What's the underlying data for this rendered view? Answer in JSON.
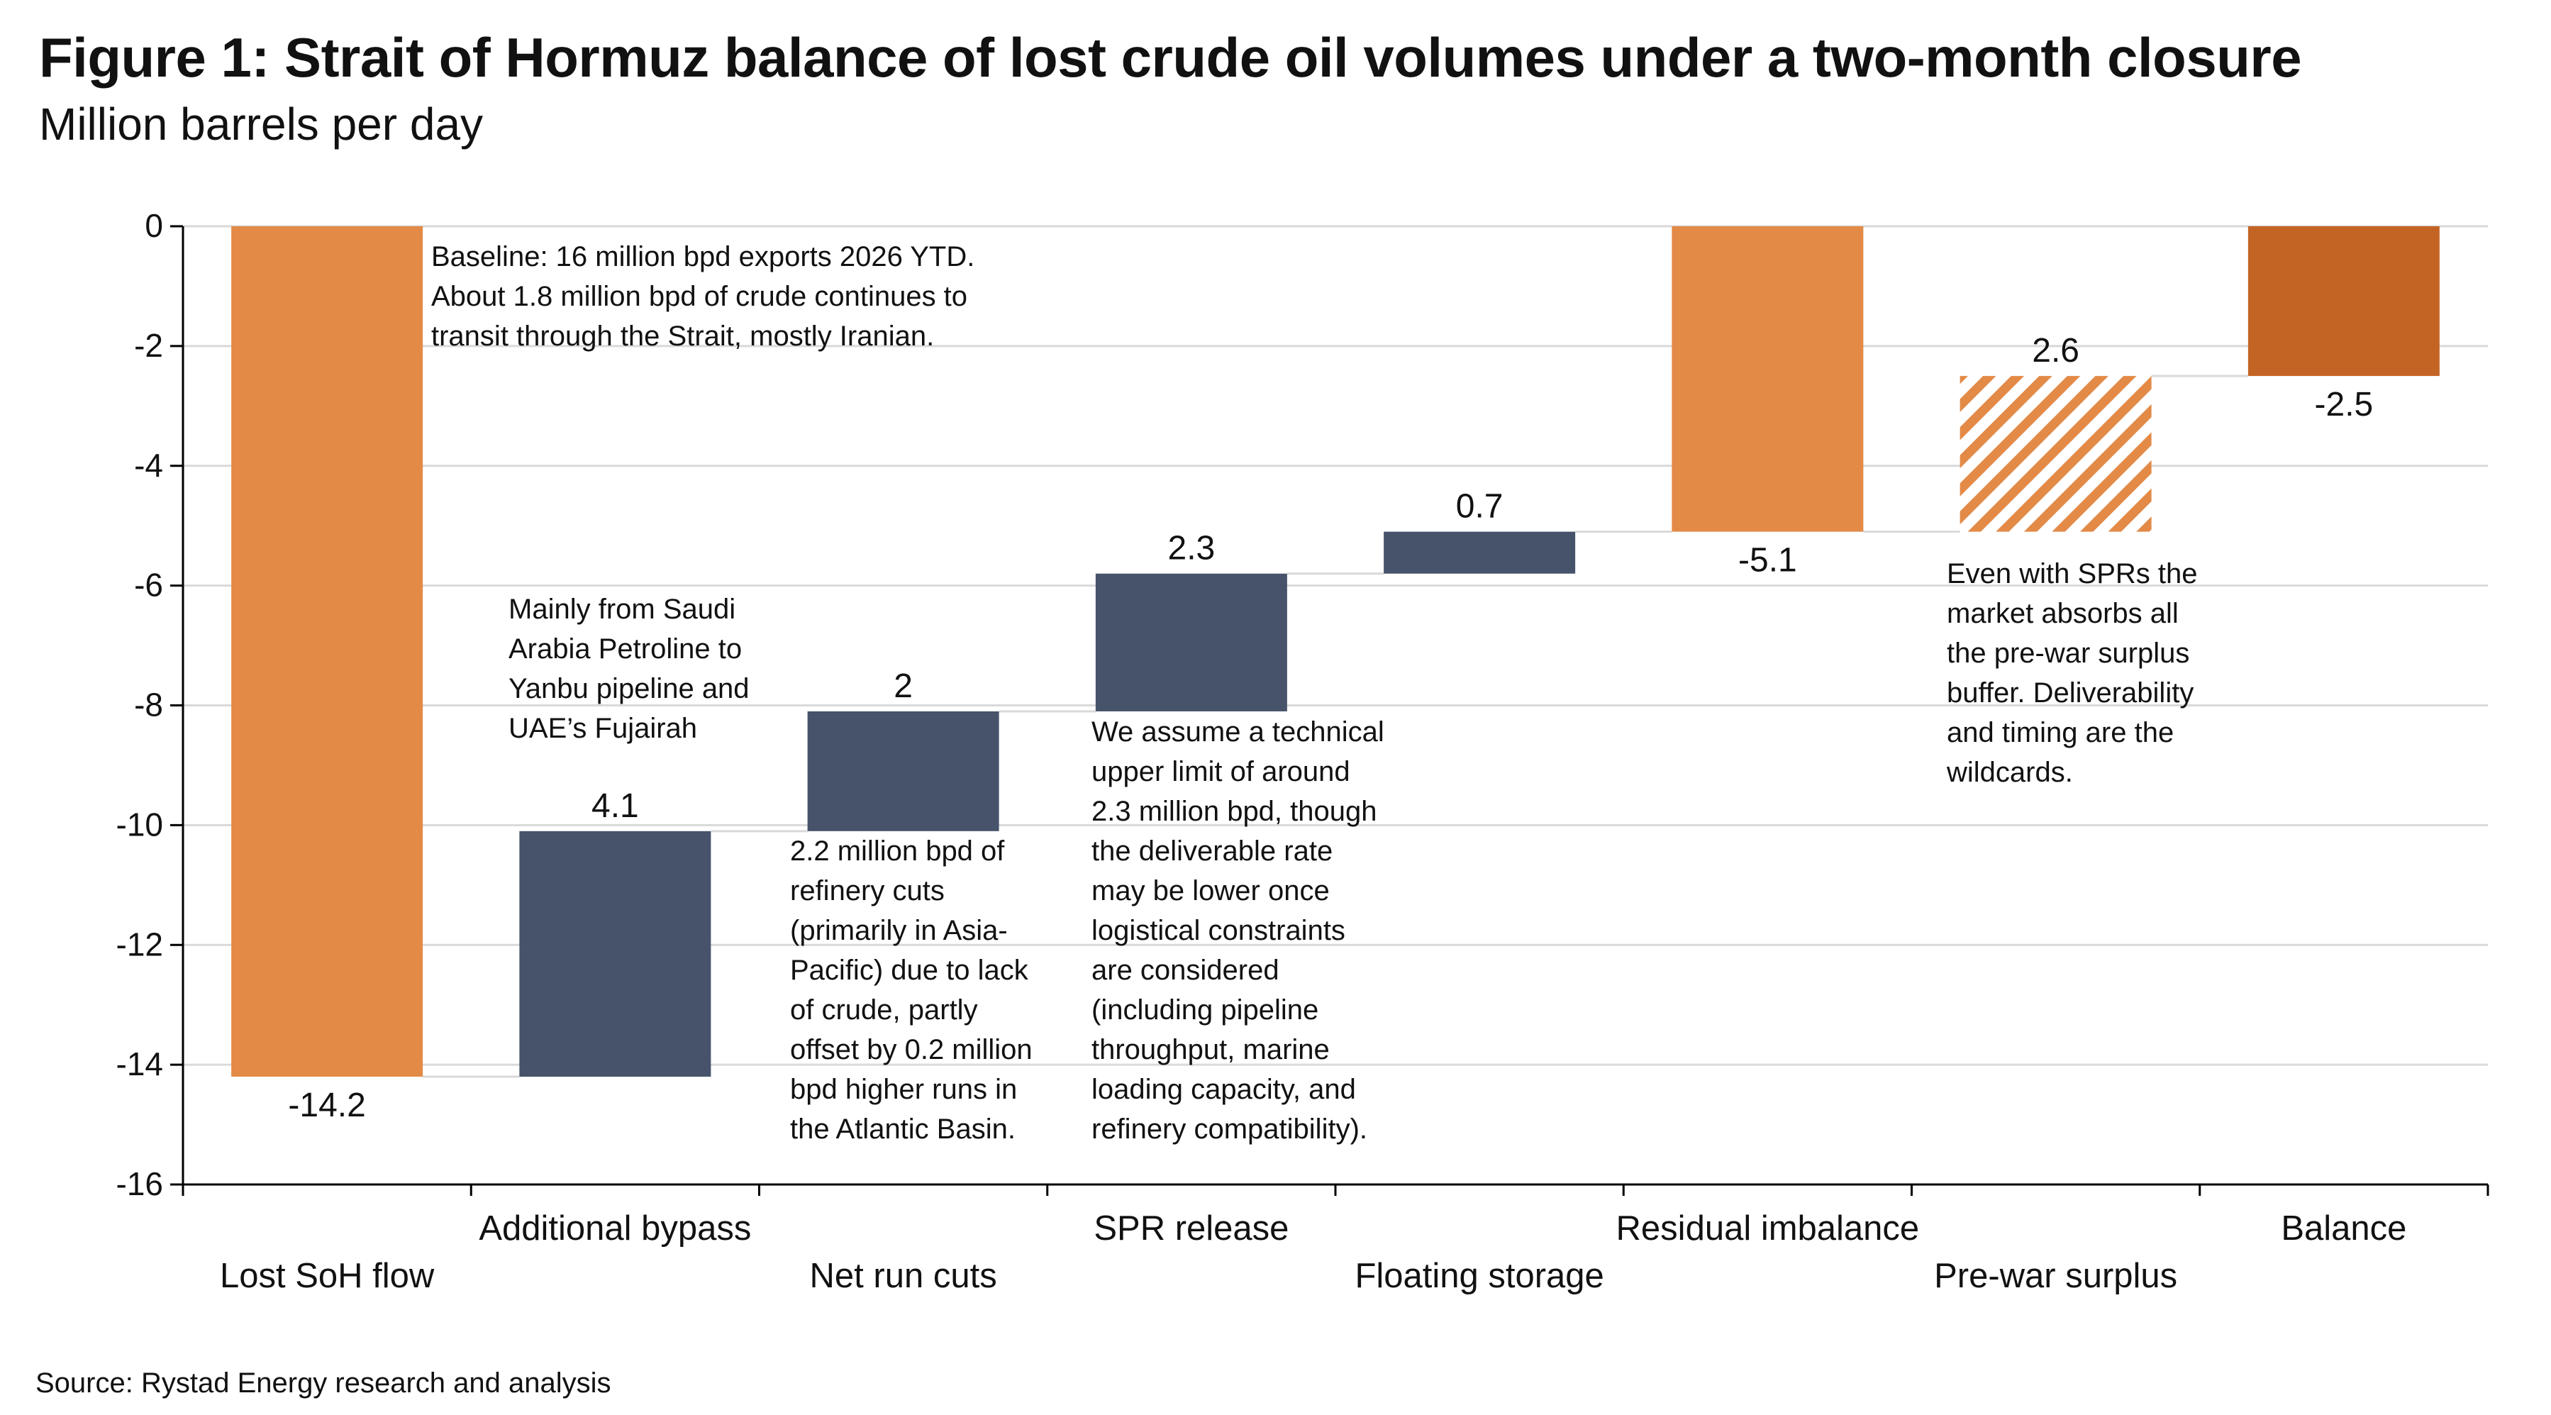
{
  "header": {
    "title": "Figure 1: Strait of Hormuz balance of lost crude oil volumes under a two-month closure",
    "subtitle": "Million barrels per day"
  },
  "footer": {
    "source": "Source: Rystad Energy research and analysis"
  },
  "colors": {
    "loss": "#E38A47",
    "offset": "#46536A",
    "balance": "#C46424",
    "hatch": "#E38A47",
    "grid": "#D9D9D9",
    "axis": "#000000"
  },
  "notes": {
    "baseline": [
      "Baseline: 16 million bpd exports 2026 YTD.",
      "About 1.8 million bpd of crude continues to",
      "transit through the Strait, mostly Iranian."
    ],
    "bypass": [
      "Mainly from Saudi",
      "Arabia Petroline to",
      "Yanbu pipeline and",
      "UAE’s Fujairah"
    ],
    "run_cuts": [
      "2.2 million bpd of",
      "refinery cuts",
      "(primarily in Asia-",
      "Pacific) due to lack",
      "of crude, partly",
      "offset by 0.2 million",
      "bpd higher runs in",
      "the Atlantic Basin."
    ],
    "spr": [
      "We assume a technical",
      "upper limit of around",
      "2.3 million bpd, though",
      "the deliverable rate",
      "may be lower once",
      "logistical constraints",
      "are considered",
      "(including pipeline",
      "throughput, marine",
      "loading capacity, and",
      "refinery compatibility)."
    ],
    "surplus": [
      "Even with SPRs the",
      "market absorbs all",
      "the pre-war surplus",
      "buffer. Deliverability",
      "and timing are the",
      "wildcards."
    ]
  },
  "chart_data": {
    "type": "waterfall",
    "title": "Figure 1: Strait of Hormuz balance of lost crude oil volumes under a two-month closure",
    "ylabel": "Million barrels per day",
    "ylim": [
      -16,
      0
    ],
    "yticks": [
      0,
      -2,
      -4,
      -6,
      -8,
      -10,
      -12,
      -14,
      -16
    ],
    "grid": true,
    "categories": [
      "Lost SoH flow",
      "Additional bypass",
      "Net run cuts",
      "SPR release",
      "Floating storage",
      "Residual  imbalance",
      "Pre-war surplus",
      "Balance"
    ],
    "bars": [
      {
        "category": "Lost SoH flow",
        "start": 0,
        "end": -14.2,
        "label": "-14.2",
        "kind": "loss"
      },
      {
        "category": "Additional bypass",
        "start": -14.2,
        "end": -10.1,
        "label": "4.1",
        "kind": "offset"
      },
      {
        "category": "Net run cuts",
        "start": -10.1,
        "end": -8.1,
        "label": "2",
        "kind": "offset"
      },
      {
        "category": "SPR release",
        "start": -8.1,
        "end": -5.8,
        "label": "2.3",
        "kind": "offset"
      },
      {
        "category": "Floating storage",
        "start": -5.8,
        "end": -5.1,
        "label": "0.7",
        "kind": "offset"
      },
      {
        "category": "Residual  imbalance",
        "start": 0,
        "end": -5.1,
        "label": "-5.1",
        "kind": "loss"
      },
      {
        "category": "Pre-war surplus",
        "start": -5.1,
        "end": -2.5,
        "label": "2.6",
        "kind": "hatch"
      },
      {
        "category": "Balance",
        "start": 0,
        "end": -2.5,
        "label": "-2.5",
        "kind": "balance"
      }
    ]
  }
}
